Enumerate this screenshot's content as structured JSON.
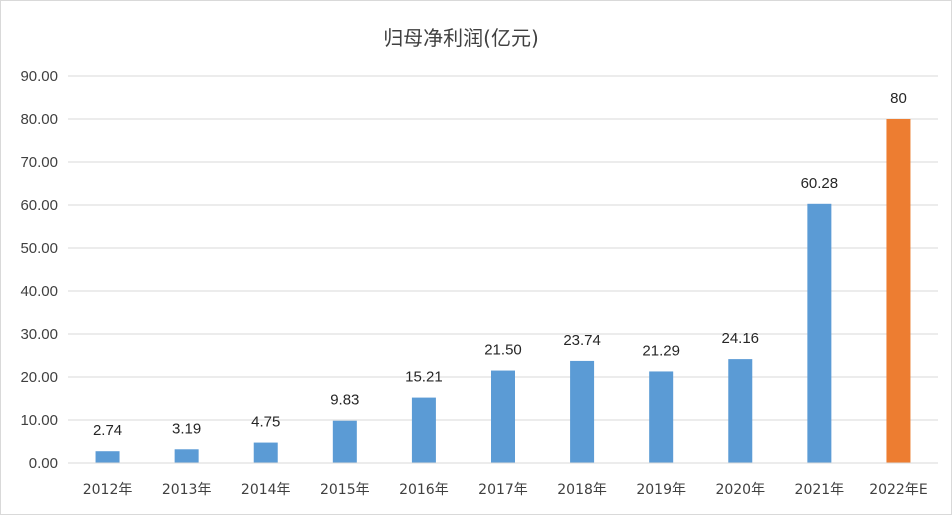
{
  "chart_data": {
    "type": "bar",
    "title": "归母净利润(亿元)",
    "xlabel": "",
    "ylabel": "",
    "ylim": [
      0,
      90
    ],
    "yticks": [
      0,
      10,
      20,
      30,
      40,
      50,
      60,
      70,
      80,
      90
    ],
    "ytick_labels": [
      "0.00",
      "10.00",
      "20.00",
      "30.00",
      "40.00",
      "50.00",
      "60.00",
      "70.00",
      "80.00",
      "90.00"
    ],
    "grid": true,
    "legend": "none",
    "categories": [
      "2012年",
      "2013年",
      "2014年",
      "2015年",
      "2016年",
      "2017年",
      "2018年",
      "2019年",
      "2020年",
      "2021年",
      "2022年E"
    ],
    "values": [
      2.74,
      3.19,
      4.75,
      9.83,
      15.21,
      21.5,
      23.74,
      21.29,
      24.16,
      60.28,
      80
    ],
    "value_labels": [
      "2.74",
      "3.19",
      "4.75",
      "9.83",
      "15.21",
      "21.50",
      "23.74",
      "21.29",
      "24.16",
      "60.28",
      "80"
    ],
    "colors": [
      "#5b9bd5",
      "#5b9bd5",
      "#5b9bd5",
      "#5b9bd5",
      "#5b9bd5",
      "#5b9bd5",
      "#5b9bd5",
      "#5b9bd5",
      "#5b9bd5",
      "#5b9bd5",
      "#ed7d31"
    ],
    "gridline_color": "#d9d9d9"
  }
}
